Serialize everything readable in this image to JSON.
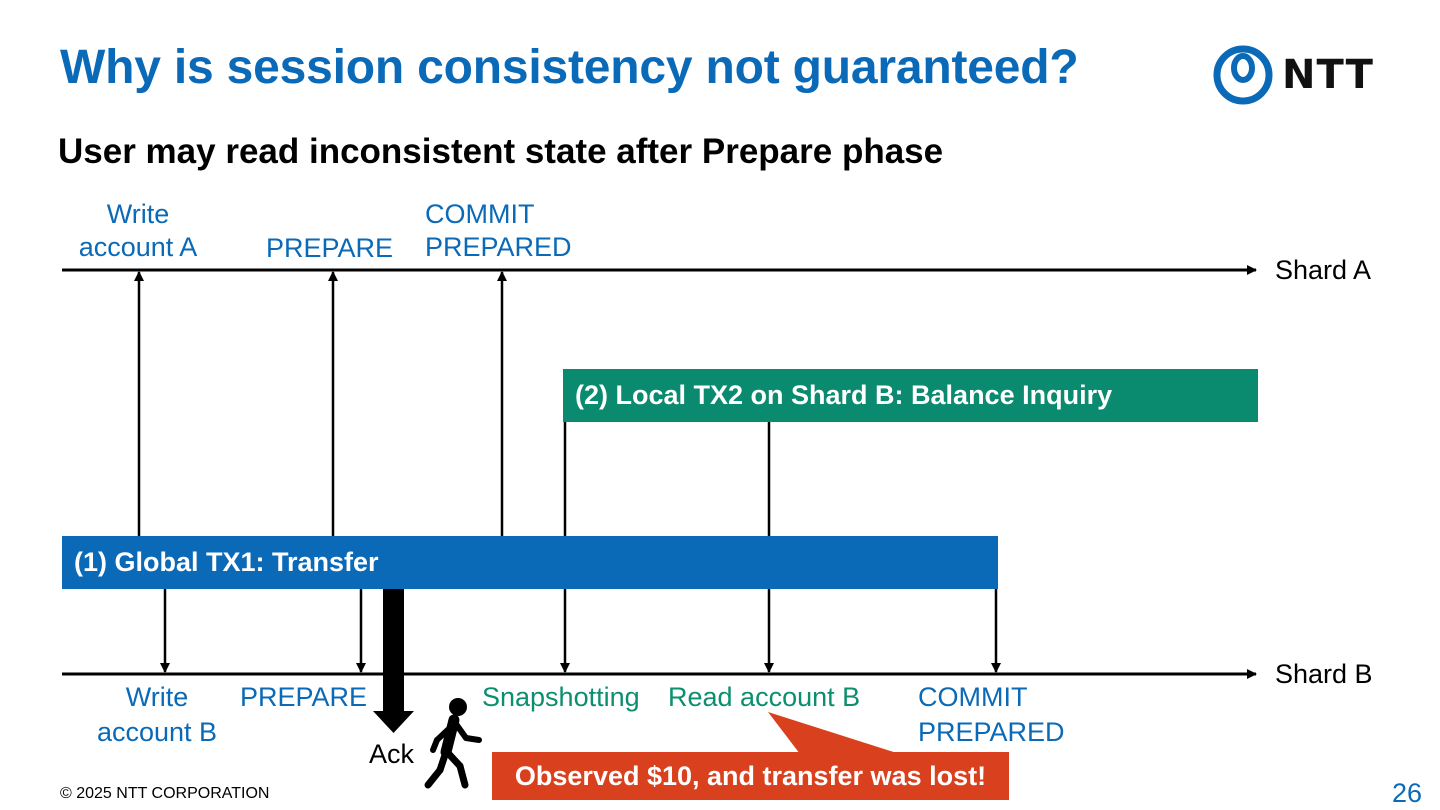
{
  "header": {
    "title": "Why is session consistency not guaranteed?",
    "logo_text": "NTT"
  },
  "subtitle": "User may read inconsistent state after Prepare phase",
  "shards": {
    "a": "Shard A",
    "b": "Shard B"
  },
  "shard_a_events": {
    "write": [
      "Write",
      "account A"
    ],
    "prepare": "PREPARE",
    "commit": [
      "COMMIT",
      "PREPARED"
    ]
  },
  "shard_b_events": {
    "write": [
      "Write",
      "account B"
    ],
    "prepare": "PREPARE",
    "snapshot": "Snapshotting",
    "read": "Read account B",
    "commit": [
      "COMMIT",
      "PREPARED"
    ]
  },
  "transactions": {
    "global": "(1) Global TX1: Transfer",
    "local": "(2) Local TX2 on Shard B: Balance Inquiry"
  },
  "ack_label": "Ack",
  "callout": "Observed $10, and transfer was lost!",
  "footer": {
    "copyright": "© 2025 NTT CORPORATION",
    "page": "26"
  },
  "colors": {
    "ntt_blue": "#0a6ab8",
    "green": "#0a8a6e",
    "callout_red": "#d9411e"
  }
}
